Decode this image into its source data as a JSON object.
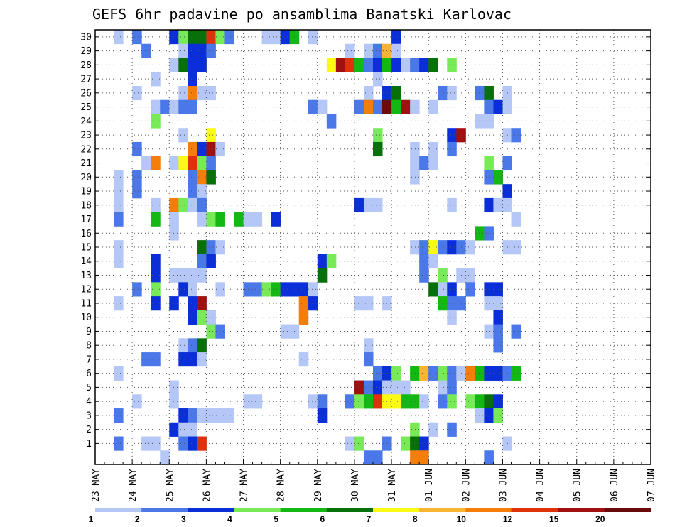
{
  "chart_data": {
    "type": "heatmap",
    "title": "GEFS 6hr padavine po ansamblima Banatski Karlovac",
    "xlabel": "",
    "ylabel": "",
    "x_ticks": [
      "23 MAY",
      "24 MAY",
      "25 MAY",
      "26 MAY",
      "27 MAY",
      "28 MAY",
      "29 MAY",
      "30 MAY",
      "31 MAY",
      "01 JUN",
      "02 JUN",
      "03 JUN",
      "04 JUN",
      "05 JUN",
      "06 JUN",
      "07 JUN"
    ],
    "y_ticks": [
      1,
      2,
      3,
      4,
      5,
      6,
      7,
      8,
      9,
      10,
      11,
      12,
      13,
      14,
      15,
      16,
      17,
      18,
      19,
      20,
      21,
      22,
      23,
      24,
      25,
      26,
      27,
      28,
      29,
      30
    ],
    "ylim": [
      0,
      30
    ],
    "steps_per_day": 4,
    "grid": true,
    "colorbar": {
      "labels": [
        "1",
        "2",
        "3",
        "4",
        "5",
        "6",
        "7",
        "8",
        "10",
        "12",
        "15",
        "20"
      ],
      "colors": [
        "#b4c7f7",
        "#4a78e8",
        "#0a2fd8",
        "#78ea58",
        "#14b814",
        "#087008",
        "#fafa14",
        "#fab434",
        "#f57d0a",
        "#e0320a",
        "#a01010",
        "#6a0a0a"
      ]
    },
    "cells_format": "[member, time_step, color_class]; time_step 0 = 23 MAY 00h; color_class indexes colorbar.colors",
    "cells": [
      [
        30,
        2,
        0
      ],
      [
        30,
        4,
        1
      ],
      [
        30,
        8,
        2
      ],
      [
        30,
        9,
        3
      ],
      [
        30,
        10,
        5
      ],
      [
        30,
        11,
        5
      ],
      [
        30,
        12,
        9
      ],
      [
        30,
        13,
        3
      ],
      [
        30,
        14,
        1
      ],
      [
        30,
        18,
        0
      ],
      [
        30,
        19,
        0
      ],
      [
        30,
        20,
        2
      ],
      [
        30,
        21,
        4
      ],
      [
        30,
        23,
        0
      ],
      [
        30,
        32,
        2
      ],
      [
        29,
        5,
        1
      ],
      [
        29,
        9,
        0
      ],
      [
        29,
        10,
        2
      ],
      [
        29,
        11,
        2
      ],
      [
        29,
        12,
        1
      ],
      [
        29,
        27,
        0
      ],
      [
        29,
        29,
        0
      ],
      [
        29,
        30,
        1
      ],
      [
        29,
        31,
        7
      ],
      [
        29,
        32,
        0
      ],
      [
        28,
        8,
        0
      ],
      [
        28,
        9,
        5
      ],
      [
        28,
        10,
        2
      ],
      [
        28,
        11,
        2
      ],
      [
        28,
        25,
        6
      ],
      [
        28,
        26,
        10
      ],
      [
        28,
        27,
        9
      ],
      [
        28,
        28,
        4
      ],
      [
        28,
        29,
        1
      ],
      [
        28,
        30,
        2
      ],
      [
        28,
        31,
        4
      ],
      [
        28,
        32,
        2
      ],
      [
        28,
        33,
        0
      ],
      [
        28,
        34,
        1
      ],
      [
        28,
        35,
        2
      ],
      [
        28,
        36,
        5
      ],
      [
        28,
        38,
        3
      ],
      [
        27,
        6,
        0
      ],
      [
        27,
        10,
        2
      ],
      [
        27,
        30,
        0
      ],
      [
        26,
        4,
        0
      ],
      [
        26,
        9,
        0
      ],
      [
        26,
        10,
        8
      ],
      [
        26,
        11,
        0
      ],
      [
        26,
        12,
        0
      ],
      [
        26,
        29,
        0
      ],
      [
        26,
        31,
        2
      ],
      [
        26,
        32,
        5
      ],
      [
        26,
        37,
        1
      ],
      [
        26,
        38,
        0
      ],
      [
        26,
        41,
        1
      ],
      [
        26,
        42,
        5
      ],
      [
        26,
        44,
        0
      ],
      [
        25,
        6,
        0
      ],
      [
        25,
        7,
        1
      ],
      [
        25,
        8,
        0
      ],
      [
        25,
        9,
        1
      ],
      [
        25,
        10,
        1
      ],
      [
        25,
        23,
        1
      ],
      [
        25,
        24,
        0
      ],
      [
        25,
        28,
        1
      ],
      [
        25,
        29,
        8
      ],
      [
        25,
        30,
        1
      ],
      [
        25,
        31,
        11
      ],
      [
        25,
        32,
        4
      ],
      [
        25,
        33,
        10
      ],
      [
        25,
        34,
        0
      ],
      [
        25,
        36,
        0
      ],
      [
        25,
        42,
        1
      ],
      [
        25,
        43,
        2
      ],
      [
        25,
        44,
        0
      ],
      [
        24,
        6,
        3
      ],
      [
        24,
        25,
        1
      ],
      [
        24,
        41,
        0
      ],
      [
        24,
        42,
        0
      ],
      [
        23,
        9,
        0
      ],
      [
        23,
        12,
        6
      ],
      [
        23,
        30,
        3
      ],
      [
        23,
        38,
        2
      ],
      [
        23,
        39,
        10
      ],
      [
        23,
        44,
        0
      ],
      [
        23,
        45,
        1
      ],
      [
        22,
        4,
        1
      ],
      [
        22,
        10,
        8
      ],
      [
        22,
        11,
        2
      ],
      [
        22,
        12,
        10
      ],
      [
        22,
        13,
        0
      ],
      [
        22,
        30,
        5
      ],
      [
        22,
        34,
        0
      ],
      [
        22,
        36,
        0
      ],
      [
        22,
        38,
        1
      ],
      [
        21,
        5,
        0
      ],
      [
        21,
        6,
        8
      ],
      [
        21,
        8,
        0
      ],
      [
        21,
        9,
        6
      ],
      [
        21,
        10,
        9
      ],
      [
        21,
        11,
        3
      ],
      [
        21,
        12,
        1
      ],
      [
        21,
        34,
        0
      ],
      [
        21,
        35,
        1
      ],
      [
        21,
        36,
        0
      ],
      [
        21,
        42,
        3
      ],
      [
        21,
        44,
        1
      ],
      [
        20,
        2,
        0
      ],
      [
        20,
        4,
        1
      ],
      [
        20,
        10,
        1
      ],
      [
        20,
        11,
        8
      ],
      [
        20,
        12,
        5
      ],
      [
        20,
        34,
        0
      ],
      [
        20,
        42,
        1
      ],
      [
        20,
        43,
        4
      ],
      [
        19,
        2,
        0
      ],
      [
        19,
        4,
        1
      ],
      [
        19,
        10,
        1
      ],
      [
        19,
        11,
        0
      ],
      [
        19,
        44,
        2
      ],
      [
        18,
        2,
        0
      ],
      [
        18,
        6,
        0
      ],
      [
        18,
        8,
        8
      ],
      [
        18,
        9,
        3
      ],
      [
        18,
        10,
        0
      ],
      [
        18,
        11,
        1
      ],
      [
        18,
        28,
        2
      ],
      [
        18,
        29,
        0
      ],
      [
        18,
        30,
        0
      ],
      [
        18,
        38,
        0
      ],
      [
        18,
        42,
        2
      ],
      [
        18,
        43,
        0
      ],
      [
        18,
        44,
        0
      ],
      [
        17,
        2,
        1
      ],
      [
        17,
        6,
        4
      ],
      [
        17,
        8,
        0
      ],
      [
        17,
        11,
        0
      ],
      [
        17,
        12,
        3
      ],
      [
        17,
        13,
        4
      ],
      [
        17,
        15,
        4
      ],
      [
        17,
        16,
        0
      ],
      [
        17,
        17,
        0
      ],
      [
        17,
        19,
        2
      ],
      [
        17,
        45,
        0
      ],
      [
        16,
        8,
        0
      ],
      [
        16,
        41,
        4
      ],
      [
        16,
        42,
        1
      ],
      [
        15,
        2,
        0
      ],
      [
        15,
        11,
        5
      ],
      [
        15,
        12,
        1
      ],
      [
        15,
        13,
        0
      ],
      [
        15,
        34,
        0
      ],
      [
        15,
        35,
        1
      ],
      [
        15,
        36,
        6
      ],
      [
        15,
        37,
        1
      ],
      [
        15,
        38,
        2
      ],
      [
        15,
        39,
        1
      ],
      [
        15,
        40,
        0
      ],
      [
        15,
        44,
        0
      ],
      [
        15,
        45,
        0
      ],
      [
        14,
        2,
        0
      ],
      [
        14,
        6,
        2
      ],
      [
        14,
        11,
        1
      ],
      [
        14,
        12,
        2
      ],
      [
        14,
        24,
        2
      ],
      [
        14,
        25,
        3
      ],
      [
        14,
        35,
        1
      ],
      [
        14,
        36,
        0
      ],
      [
        13,
        6,
        2
      ],
      [
        13,
        8,
        0
      ],
      [
        13,
        9,
        0
      ],
      [
        13,
        10,
        0
      ],
      [
        13,
        11,
        0
      ],
      [
        13,
        24,
        5
      ],
      [
        13,
        35,
        1
      ],
      [
        13,
        37,
        3
      ],
      [
        13,
        39,
        0
      ],
      [
        13,
        40,
        0
      ],
      [
        12,
        4,
        1
      ],
      [
        12,
        6,
        3
      ],
      [
        12,
        9,
        2
      ],
      [
        12,
        10,
        0
      ],
      [
        12,
        13,
        0
      ],
      [
        12,
        16,
        1
      ],
      [
        12,
        17,
        1
      ],
      [
        12,
        18,
        3
      ],
      [
        12,
        19,
        4
      ],
      [
        12,
        20,
        2
      ],
      [
        12,
        21,
        2
      ],
      [
        12,
        22,
        2
      ],
      [
        12,
        23,
        0
      ],
      [
        12,
        36,
        5
      ],
      [
        12,
        37,
        0
      ],
      [
        12,
        38,
        2
      ],
      [
        12,
        40,
        1
      ],
      [
        12,
        42,
        2
      ],
      [
        12,
        43,
        2
      ],
      [
        11,
        2,
        0
      ],
      [
        11,
        6,
        2
      ],
      [
        11,
        8,
        2
      ],
      [
        11,
        10,
        2
      ],
      [
        11,
        11,
        10
      ],
      [
        11,
        22,
        8
      ],
      [
        11,
        23,
        2
      ],
      [
        11,
        28,
        0
      ],
      [
        11,
        29,
        0
      ],
      [
        11,
        31,
        0
      ],
      [
        11,
        37,
        4
      ],
      [
        11,
        38,
        1
      ],
      [
        11,
        39,
        1
      ],
      [
        11,
        42,
        0
      ],
      [
        11,
        43,
        0
      ],
      [
        10,
        10,
        2
      ],
      [
        10,
        11,
        3
      ],
      [
        10,
        12,
        0
      ],
      [
        10,
        22,
        8
      ],
      [
        10,
        38,
        0
      ],
      [
        10,
        43,
        2
      ],
      [
        9,
        12,
        3
      ],
      [
        9,
        13,
        1
      ],
      [
        9,
        20,
        0
      ],
      [
        9,
        21,
        0
      ],
      [
        9,
        42,
        0
      ],
      [
        9,
        43,
        1
      ],
      [
        9,
        45,
        1
      ],
      [
        8,
        9,
        0
      ],
      [
        8,
        10,
        1
      ],
      [
        8,
        11,
        5
      ],
      [
        8,
        29,
        0
      ],
      [
        8,
        43,
        1
      ],
      [
        7,
        5,
        1
      ],
      [
        7,
        6,
        1
      ],
      [
        7,
        9,
        2
      ],
      [
        7,
        10,
        2
      ],
      [
        7,
        11,
        0
      ],
      [
        7,
        22,
        0
      ],
      [
        7,
        29,
        1
      ],
      [
        6,
        2,
        0
      ],
      [
        6,
        30,
        1
      ],
      [
        6,
        31,
        2
      ],
      [
        6,
        32,
        3
      ],
      [
        6,
        34,
        4
      ],
      [
        6,
        35,
        7
      ],
      [
        6,
        36,
        1
      ],
      [
        6,
        37,
        3
      ],
      [
        6,
        38,
        1
      ],
      [
        6,
        39,
        0
      ],
      [
        6,
        40,
        8
      ],
      [
        6,
        41,
        4
      ],
      [
        6,
        42,
        2
      ],
      [
        6,
        43,
        2
      ],
      [
        6,
        44,
        1
      ],
      [
        6,
        45,
        4
      ],
      [
        5,
        8,
        0
      ],
      [
        5,
        28,
        10
      ],
      [
        5,
        29,
        1
      ],
      [
        5,
        30,
        2
      ],
      [
        5,
        31,
        0
      ],
      [
        5,
        32,
        0
      ],
      [
        5,
        33,
        0
      ],
      [
        5,
        37,
        0
      ],
      [
        5,
        38,
        1
      ],
      [
        4,
        4,
        0
      ],
      [
        4,
        8,
        0
      ],
      [
        4,
        16,
        0
      ],
      [
        4,
        17,
        0
      ],
      [
        4,
        23,
        0
      ],
      [
        4,
        24,
        1
      ],
      [
        4,
        27,
        1
      ],
      [
        4,
        28,
        3
      ],
      [
        4,
        29,
        4
      ],
      [
        4,
        30,
        9
      ],
      [
        4,
        31,
        6
      ],
      [
        4,
        32,
        6
      ],
      [
        4,
        33,
        4
      ],
      [
        4,
        34,
        4
      ],
      [
        4,
        35,
        0
      ],
      [
        4,
        37,
        1
      ],
      [
        4,
        38,
        3
      ],
      [
        4,
        40,
        3
      ],
      [
        4,
        41,
        4
      ],
      [
        4,
        42,
        5
      ],
      [
        4,
        43,
        2
      ],
      [
        3,
        2,
        1
      ],
      [
        3,
        9,
        2
      ],
      [
        3,
        10,
        1
      ],
      [
        3,
        11,
        0
      ],
      [
        3,
        12,
        0
      ],
      [
        3,
        13,
        0
      ],
      [
        3,
        14,
        0
      ],
      [
        3,
        24,
        2
      ],
      [
        3,
        41,
        0
      ],
      [
        3,
        42,
        2
      ],
      [
        3,
        43,
        3
      ],
      [
        2,
        8,
        2
      ],
      [
        2,
        9,
        0
      ],
      [
        2,
        10,
        0
      ],
      [
        2,
        34,
        3
      ],
      [
        2,
        36,
        0
      ],
      [
        2,
        38,
        1
      ],
      [
        1,
        2,
        1
      ],
      [
        1,
        5,
        0
      ],
      [
        1,
        6,
        0
      ],
      [
        1,
        9,
        1
      ],
      [
        1,
        10,
        2
      ],
      [
        1,
        11,
        9
      ],
      [
        1,
        27,
        0
      ],
      [
        1,
        28,
        3
      ],
      [
        1,
        31,
        1
      ],
      [
        1,
        33,
        3
      ],
      [
        1,
        34,
        5
      ],
      [
        1,
        35,
        2
      ],
      [
        1,
        44,
        0
      ],
      [
        0,
        7,
        0
      ],
      [
        0,
        29,
        1
      ],
      [
        0,
        30,
        1
      ],
      [
        0,
        34,
        8
      ],
      [
        0,
        35,
        8
      ],
      [
        0,
        42,
        1
      ]
    ]
  }
}
